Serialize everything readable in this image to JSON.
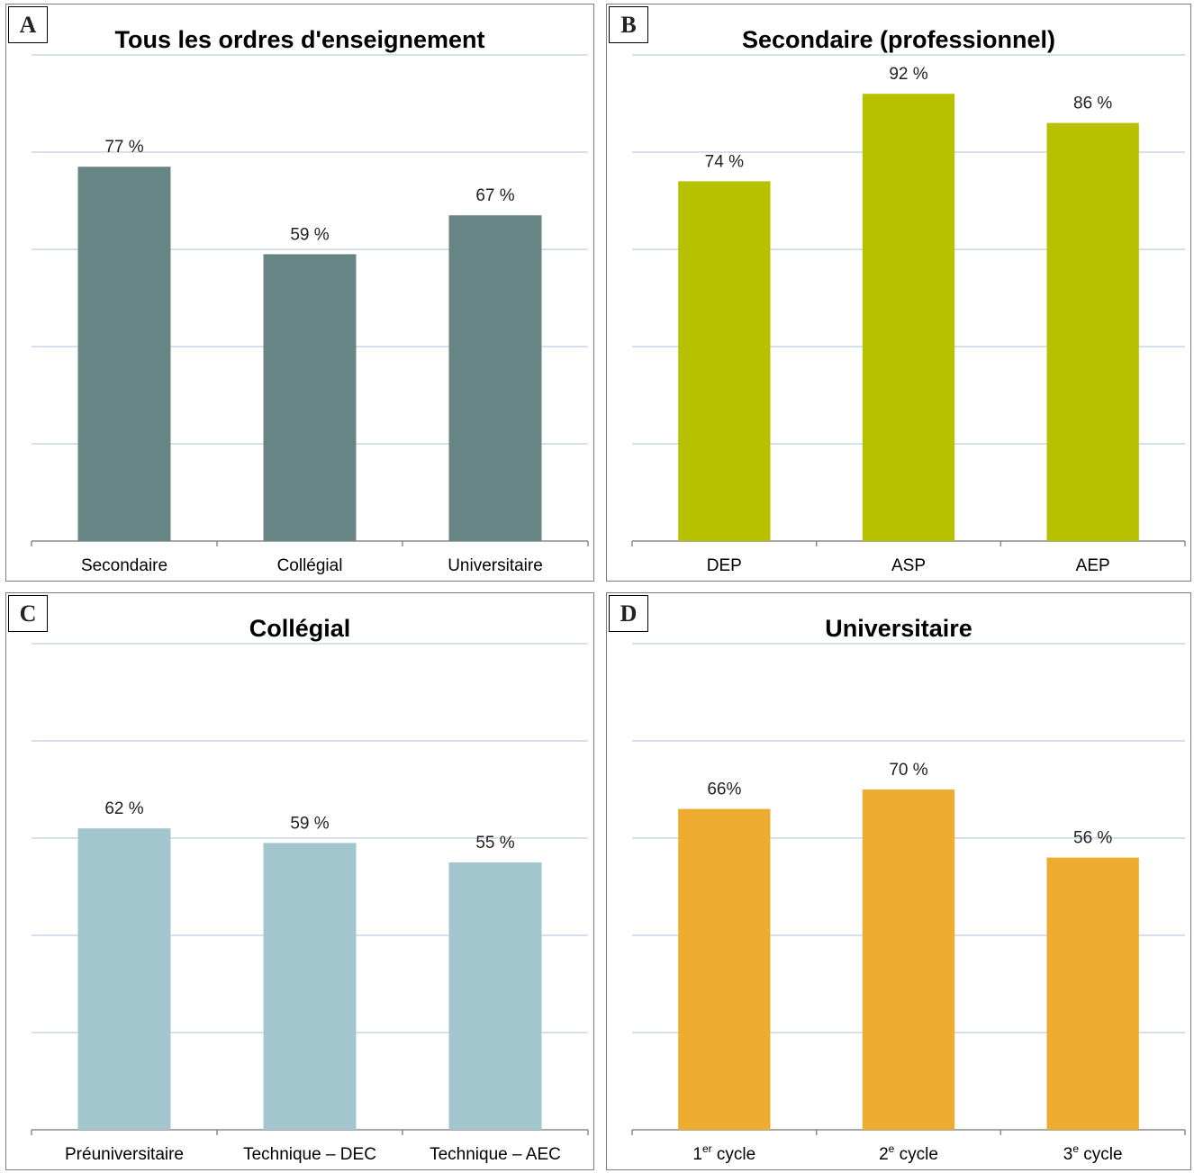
{
  "charts": [
    {
      "letter": "A",
      "title": "Tous les ordres d'enseignement",
      "color": "#678585",
      "chart_data": {
        "type": "bar",
        "title": "Tous les ordres d'enseignement",
        "categories": [
          "Secondaire",
          "Collégial",
          "Universitaire"
        ],
        "values": [
          77,
          59,
          67
        ],
        "labels": [
          "77 %",
          "59 %",
          "67 %"
        ],
        "ylim": [
          0,
          100
        ],
        "grid": true
      }
    },
    {
      "letter": "B",
      "title": "Secondaire (professionnel)",
      "color": "#b8c100",
      "chart_data": {
        "type": "bar",
        "title": "Secondaire (professionnel)",
        "categories": [
          "DEP",
          "ASP",
          "AEP"
        ],
        "values": [
          74,
          92,
          86
        ],
        "labels": [
          "74 %",
          "92 %",
          "86 %"
        ],
        "ylim": [
          0,
          100
        ],
        "grid": true
      }
    },
    {
      "letter": "C",
      "title": "Collégial",
      "color": "#a3c6ce",
      "chart_data": {
        "type": "bar",
        "title": "Collégial",
        "categories": [
          "Préuniversitaire",
          "Technique – DEC",
          "Technique  – AEC"
        ],
        "values": [
          62,
          59,
          55
        ],
        "labels": [
          "62 %",
          "59 %",
          "55 %"
        ],
        "ylim": [
          0,
          100
        ],
        "grid": true
      }
    },
    {
      "letter": "D",
      "title": "Universitaire",
      "color": "#edac2f",
      "chart_data": {
        "type": "bar",
        "title": "Universitaire",
        "categories": [
          "1er cycle",
          "2e cycle",
          "3e cycle"
        ],
        "category_parts": [
          {
            "pre": "1",
            "sup": "er",
            "post": " cycle"
          },
          {
            "pre": "2",
            "sup": "e",
            "post": " cycle"
          },
          {
            "pre": "3",
            "sup": "e",
            "post": " cycle"
          }
        ],
        "values": [
          66,
          70,
          56
        ],
        "labels": [
          "66%",
          "70 %",
          "56 %"
        ],
        "ylim": [
          0,
          100
        ],
        "grid": true
      }
    }
  ]
}
